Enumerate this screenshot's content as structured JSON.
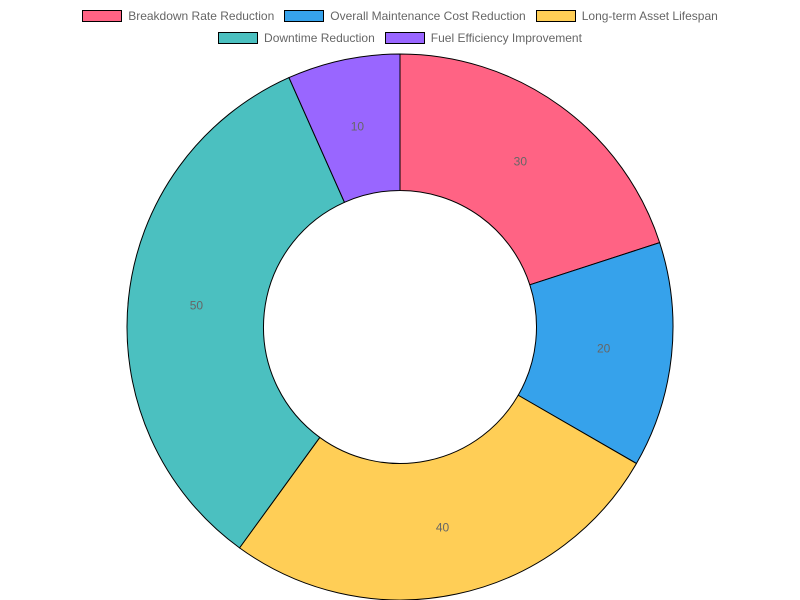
{
  "chart_data": {
    "type": "pie",
    "variant": "doughnut",
    "title": "",
    "legend_position": "top",
    "series": [
      {
        "name": "Breakdown Rate Reduction",
        "value": 30,
        "color": "#FF6384"
      },
      {
        "name": "Overall Maintenance Cost Reduction",
        "value": 20,
        "color": "#36A2EB"
      },
      {
        "name": "Long-term Asset Lifespan",
        "value": 40,
        "color": "#FFCE56"
      },
      {
        "name": "Downtime Reduction",
        "value": 50,
        "color": "#4BC0C0"
      },
      {
        "name": "Fuel Efficiency Improvement",
        "value": 10,
        "color": "#9966FF"
      }
    ],
    "border_color": "#000000",
    "label_color": "#666666"
  }
}
